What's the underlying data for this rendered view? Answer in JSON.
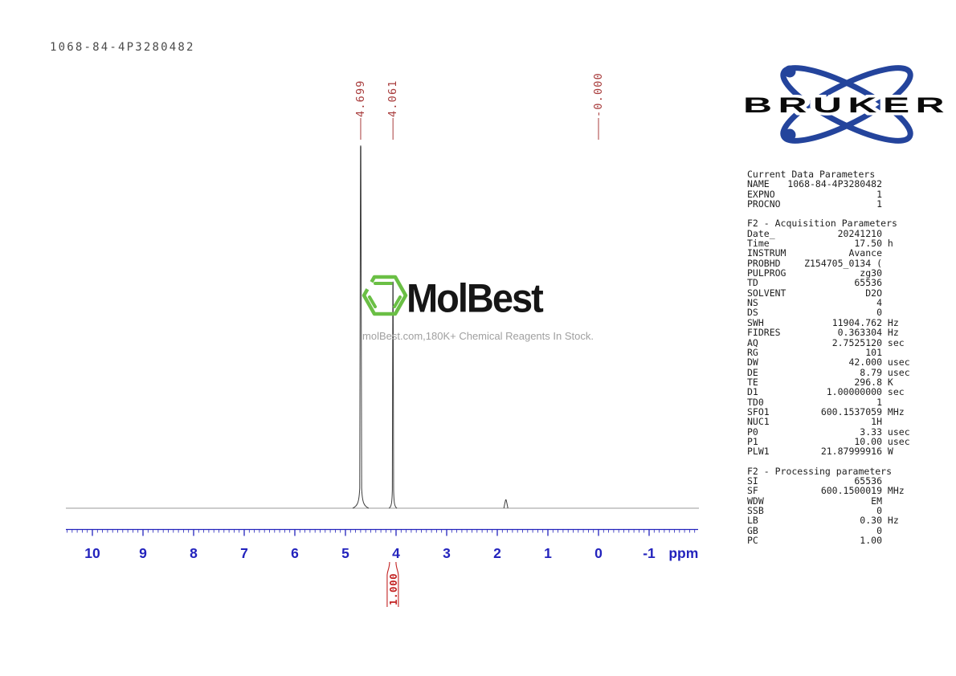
{
  "page": {
    "title": "1068-84-4P3280482"
  },
  "colors": {
    "axis": "#2323bd",
    "peak_label": "#a83c3c",
    "integral": "#c32222",
    "trace": "#3e3e3e",
    "baseline": "#9a9a9a",
    "brand_green": "#6abf45",
    "bruker_blue": "#24449c",
    "tagline_gray": "#a0a0a0"
  },
  "chart_data": {
    "type": "line",
    "title": "1068-84-4P3280482",
    "xlabel": "ppm",
    "x_axis": {
      "max": 10.5,
      "min": -1.95,
      "major_ticks": [
        10,
        9,
        8,
        7,
        6,
        5,
        4,
        3,
        2,
        1,
        0,
        -1
      ],
      "minor_step": 0.1
    },
    "peaks": [
      {
        "ppm": 4.699,
        "label": "4.699",
        "rel_height": 1.0
      },
      {
        "ppm": 4.061,
        "label": "4.061",
        "rel_height": 0.625
      },
      {
        "ppm": 1.83,
        "label": "",
        "rel_height": 0.024
      },
      {
        "ppm": 0.0,
        "label": "-0.000",
        "rel_height": 0.0
      }
    ],
    "integrals": [
      {
        "value": "1.000",
        "from_ppm": 4.16,
        "to_ppm": 3.97
      }
    ]
  },
  "watermark": {
    "brand": "MolBest",
    "tagline": "molBest.com,180K+ Chemical Reagents In Stock."
  },
  "bruker": {
    "wordmark": "BRUKER"
  },
  "parameters": {
    "sections": [
      {
        "header": "Current Data Parameters",
        "rows": [
          [
            "NAME",
            "1068-84-4P3280482",
            ""
          ],
          [
            "EXPNO",
            "1",
            ""
          ],
          [
            "PROCNO",
            "1",
            ""
          ]
        ]
      },
      {
        "header": "F2 - Acquisition Parameters",
        "rows": [
          [
            "Date_",
            "20241210",
            ""
          ],
          [
            "Time",
            "17.50",
            "h"
          ],
          [
            "INSTRUM",
            "Avance",
            ""
          ],
          [
            "PROBHD",
            "Z154705_0134 (",
            ""
          ],
          [
            "PULPROG",
            "zg30",
            ""
          ],
          [
            "TD",
            "65536",
            ""
          ],
          [
            "SOLVENT",
            "D2O",
            ""
          ],
          [
            "NS",
            "4",
            ""
          ],
          [
            "DS",
            "0",
            ""
          ],
          [
            "SWH",
            "11904.762",
            "Hz"
          ],
          [
            "FIDRES",
            "0.363304",
            "Hz"
          ],
          [
            "AQ",
            "2.7525120",
            "sec"
          ],
          [
            "RG",
            "101",
            ""
          ],
          [
            "DW",
            "42.000",
            "usec"
          ],
          [
            "DE",
            "8.79",
            "usec"
          ],
          [
            "TE",
            "296.8",
            "K"
          ],
          [
            "D1",
            "1.00000000",
            "sec"
          ],
          [
            "TD0",
            "1",
            ""
          ],
          [
            "SFO1",
            "600.1537059",
            "MHz"
          ],
          [
            "NUC1",
            "1H",
            ""
          ],
          [
            "P0",
            "3.33",
            "usec"
          ],
          [
            "P1",
            "10.00",
            "usec"
          ],
          [
            "PLW1",
            "21.87999916",
            "W"
          ]
        ]
      },
      {
        "header": "F2 - Processing parameters",
        "rows": [
          [
            "SI",
            "65536",
            ""
          ],
          [
            "SF",
            "600.1500019",
            "MHz"
          ],
          [
            "WDW",
            "EM",
            ""
          ],
          [
            "SSB",
            "0",
            ""
          ],
          [
            "LB",
            "0.30",
            "Hz"
          ],
          [
            "GB",
            "0",
            ""
          ],
          [
            "PC",
            "1.00",
            ""
          ]
        ]
      }
    ]
  }
}
